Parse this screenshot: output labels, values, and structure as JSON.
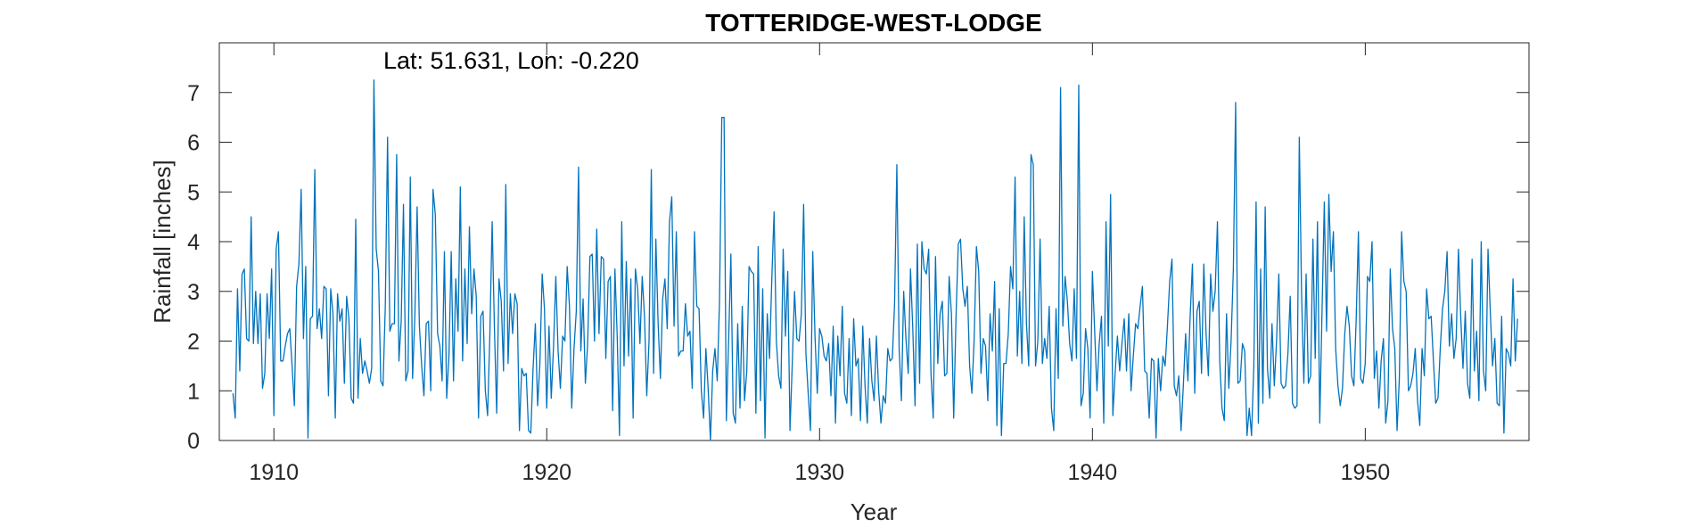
{
  "chart_data": {
    "type": "line",
    "title": "TOTTERIDGE-WEST-LODGE",
    "annotation": "Lat: 51.631, Lon: -0.220",
    "xlabel": "Year",
    "ylabel": "Rainfall [inches]",
    "xlim": [
      1908.0,
      1956.0
    ],
    "ylim": [
      0,
      8
    ],
    "xticks": [
      1910,
      1920,
      1930,
      1940,
      1950
    ],
    "yticks": [
      0,
      1,
      2,
      3,
      4,
      5,
      6,
      7
    ],
    "grid": false,
    "box": true,
    "series": [
      {
        "color": "#0072BD",
        "x_start": 1908.5,
        "x_step": 0.08333,
        "values": [
          0.95,
          0.45,
          3.05,
          1.4,
          3.35,
          3.45,
          2.05,
          2.0,
          4.5,
          1.95,
          3.0,
          1.95,
          2.95,
          1.05,
          1.35,
          2.95,
          2.05,
          3.45,
          0.5,
          3.85,
          4.2,
          1.6,
          1.6,
          1.9,
          2.15,
          2.25,
          1.5,
          0.7,
          3.1,
          3.55,
          5.05,
          2.05,
          3.5,
          0.05,
          2.45,
          2.5,
          5.45,
          2.25,
          2.65,
          2.05,
          3.1,
          3.05,
          0.9,
          3.05,
          2.55,
          0.45,
          2.95,
          2.4,
          2.65,
          1.15,
          2.9,
          2.45,
          0.85,
          0.75,
          4.45,
          0.85,
          2.05,
          1.35,
          1.6,
          1.4,
          1.15,
          1.45,
          7.25,
          3.85,
          3.4,
          1.2,
          1.1,
          2.7,
          6.1,
          2.2,
          2.35,
          2.35,
          5.75,
          1.6,
          2.4,
          4.75,
          1.2,
          1.4,
          5.3,
          1.25,
          2.5,
          4.7,
          2.3,
          1.5,
          0.9,
          2.35,
          2.4,
          1.0,
          5.05,
          4.55,
          2.15,
          1.9,
          1.2,
          3.8,
          0.85,
          1.7,
          3.8,
          1.2,
          3.25,
          2.2,
          5.1,
          1.6,
          3.45,
          1.95,
          4.3,
          2.55,
          3.45,
          2.9,
          0.45,
          2.5,
          2.6,
          1.0,
          0.5,
          2.15,
          4.4,
          2.25,
          0.55,
          3.25,
          2.8,
          1.4,
          5.15,
          1.55,
          2.95,
          2.15,
          2.95,
          2.75,
          0.2,
          1.45,
          1.3,
          1.35,
          0.2,
          0.15,
          1.45,
          2.35,
          0.7,
          1.55,
          3.35,
          2.65,
          0.65,
          2.3,
          0.85,
          1.9,
          3.3,
          1.8,
          1.05,
          2.1,
          2.0,
          3.5,
          2.7,
          0.65,
          1.85,
          2.6,
          5.5,
          1.8,
          2.85,
          1.15,
          1.95,
          3.7,
          3.75,
          2.0,
          4.25,
          2.15,
          3.7,
          3.65,
          1.65,
          3.2,
          3.3,
          0.6,
          3.45,
          2.1,
          0.1,
          4.4,
          1.5,
          3.6,
          1.7,
          3.25,
          0.45,
          3.45,
          3.05,
          1.95,
          3.3,
          2.5,
          0.9,
          2.0,
          5.45,
          1.35,
          4.05,
          2.35,
          1.25,
          2.85,
          3.25,
          2.25,
          4.4,
          4.9,
          2.3,
          4.2,
          1.7,
          1.8,
          1.8,
          2.75,
          2.1,
          2.2,
          1.05,
          4.2,
          2.7,
          2.65,
          1.0,
          0.45,
          1.85,
          1.05,
          0.0,
          1.4,
          1.85,
          1.2,
          2.8,
          6.5,
          6.5,
          0.4,
          2.0,
          3.75,
          0.55,
          0.35,
          2.35,
          0.65,
          2.7,
          0.8,
          1.4,
          3.5,
          3.4,
          3.35,
          0.55,
          3.9,
          0.8,
          3.05,
          0.05,
          2.55,
          1.65,
          3.25,
          4.6,
          2.0,
          1.3,
          1.05,
          3.85,
          2.1,
          3.4,
          0.2,
          1.55,
          3.0,
          2.05,
          2.0,
          2.55,
          4.75,
          1.75,
          0.95,
          0.2,
          3.8,
          2.1,
          0.95,
          2.25,
          2.1,
          1.7,
          1.6,
          1.95,
          0.9,
          2.3,
          0.35,
          2.1,
          1.3,
          2.7,
          0.95,
          0.75,
          2.05,
          0.5,
          2.45,
          1.5,
          1.65,
          0.4,
          2.3,
          1.1,
          0.35,
          2.05,
          1.2,
          0.8,
          2.1,
          1.0,
          0.35,
          0.9,
          0.75,
          1.85,
          1.6,
          1.65,
          2.75,
          5.55,
          1.85,
          0.8,
          3.0,
          2.05,
          1.35,
          3.45,
          2.25,
          0.7,
          3.95,
          1.15,
          4.0,
          3.45,
          3.35,
          3.85,
          1.35,
          0.45,
          3.7,
          1.55,
          2.55,
          2.8,
          1.3,
          1.35,
          3.3,
          2.55,
          0.45,
          2.45,
          3.95,
          4.05,
          3.05,
          2.7,
          3.1,
          1.5,
          0.95,
          2.05,
          3.9,
          3.4,
          1.35,
          2.05,
          1.9,
          0.8,
          2.55,
          1.8,
          3.2,
          0.3,
          2.65,
          0.1,
          1.55,
          1.55,
          2.15,
          3.5,
          3.05,
          5.3,
          1.7,
          3.0,
          1.55,
          4.5,
          2.35,
          1.5,
          5.75,
          5.55,
          1.5,
          2.0,
          4.05,
          1.55,
          2.05,
          1.65,
          2.7,
          0.65,
          0.2,
          2.65,
          1.25,
          7.1,
          2.3,
          3.3,
          2.8,
          1.95,
          1.6,
          3.05,
          1.65,
          7.15,
          0.7,
          0.95,
          2.25,
          1.85,
          0.45,
          3.4,
          2.2,
          1.0,
          1.95,
          2.5,
          0.35,
          4.4,
          1.9,
          4.95,
          0.5,
          1.35,
          2.1,
          1.4,
          1.95,
          2.45,
          1.4,
          2.55,
          1.0,
          1.7,
          2.35,
          2.25,
          2.7,
          3.1,
          1.4,
          1.35,
          0.45,
          1.65,
          1.6,
          0.05,
          1.65,
          1.0,
          1.7,
          1.5,
          2.3,
          3.2,
          3.65,
          1.1,
          0.9,
          1.3,
          0.2,
          1.1,
          2.15,
          1.2,
          2.5,
          3.55,
          0.95,
          2.6,
          2.8,
          1.35,
          3.55,
          2.15,
          1.3,
          3.35,
          2.6,
          3.0,
          4.4,
          1.6,
          0.65,
          0.4,
          2.55,
          1.05,
          2.0,
          3.45,
          6.8,
          1.15,
          1.2,
          1.95,
          1.8,
          0.1,
          0.65,
          0.1,
          1.5,
          4.8,
          0.35,
          3.45,
          0.75,
          4.7,
          1.45,
          0.85,
          2.35,
          1.1,
          2.0,
          3.35,
          1.15,
          1.05,
          1.1,
          1.75,
          2.9,
          0.75,
          0.65,
          0.7,
          6.1,
          2.95,
          1.15,
          3.35,
          1.15,
          1.3,
          4.05,
          1.65,
          4.4,
          0.35,
          2.6,
          4.8,
          2.2,
          4.95,
          3.4,
          4.2,
          1.85,
          1.1,
          0.7,
          1.05,
          2.15,
          2.7,
          2.3,
          1.3,
          1.1,
          2.4,
          4.2,
          1.25,
          1.15,
          1.55,
          3.3,
          3.2,
          4.0,
          1.25,
          1.8,
          0.65,
          1.6,
          2.05,
          0.35,
          0.8,
          3.45,
          2.25,
          1.85,
          0.2,
          1.25,
          4.2,
          3.2,
          3.0,
          1.0,
          1.1,
          1.35,
          1.85,
          0.8,
          0.3,
          1.85,
          1.3,
          3.05,
          2.45,
          2.5,
          1.6,
          0.75,
          0.85,
          1.85,
          2.65,
          3.0,
          3.8,
          1.9,
          2.55,
          1.65,
          2.05,
          3.85,
          2.5,
          1.45,
          2.6,
          1.15,
          0.85,
          3.65,
          1.4,
          2.2,
          0.8,
          4.0,
          1.4,
          1.0,
          3.85,
          2.6,
          1.5,
          2.05,
          0.75,
          0.7,
          2.5,
          0.15,
          1.85,
          1.75,
          1.5,
          3.25,
          1.6,
          2.45
        ]
      }
    ]
  }
}
